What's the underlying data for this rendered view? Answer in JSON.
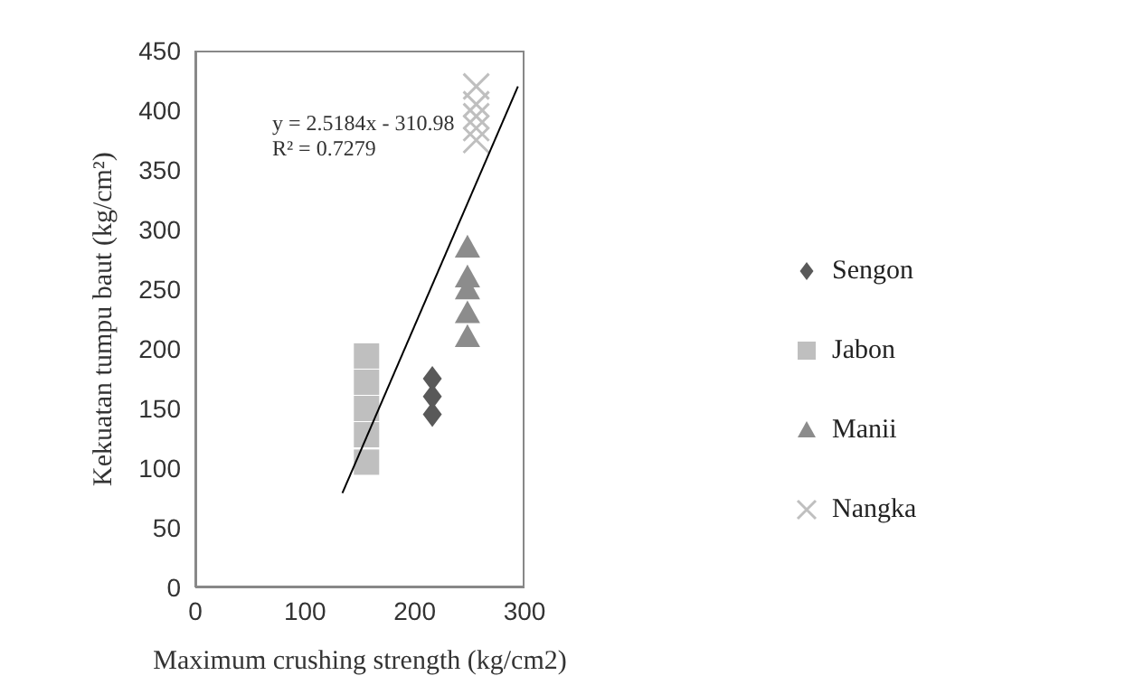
{
  "chart_data": {
    "type": "scatter",
    "xlabel": "Maximum crushing strength (kg/cm2)",
    "ylabel": "Kekuatan tumpu baut (kg/cm²)",
    "xlim": [
      0,
      300
    ],
    "xticks": [
      0,
      100,
      200,
      300
    ],
    "ylim": [
      0,
      450
    ],
    "yticks": [
      0,
      50,
      100,
      150,
      200,
      250,
      300,
      350,
      400,
      450
    ],
    "grid": false,
    "legend": "right",
    "annotations": [
      "y = 2.5184x - 310.98",
      "R² = 0.7279"
    ],
    "series": [
      {
        "name": "Sengon",
        "color": "#595959",
        "marker": "diamond",
        "x": [
          216,
          216,
          216
        ],
        "values": [
          145,
          160,
          175
        ]
      },
      {
        "name": "Jabon",
        "color": "#bfbfbf",
        "marker": "square",
        "x": [
          156,
          156,
          156,
          156,
          156
        ],
        "values": [
          105,
          128,
          150,
          172,
          194
        ]
      },
      {
        "name": "Manii",
        "color": "#8c8c8c",
        "marker": "triangle",
        "x": [
          248,
          248,
          248,
          248,
          248
        ],
        "values": [
          210,
          230,
          250,
          260,
          285
        ]
      },
      {
        "name": "Nangka",
        "color": "#bfbfbf",
        "marker": "cross",
        "x": [
          256,
          256,
          256,
          256,
          256
        ],
        "values": [
          375,
          385,
          395,
          405,
          420
        ]
      },
      {
        "type": "line",
        "color": "#000000",
        "marker": "none",
        "x": [
          134,
          294
        ],
        "values": [
          79,
          420
        ]
      }
    ]
  }
}
